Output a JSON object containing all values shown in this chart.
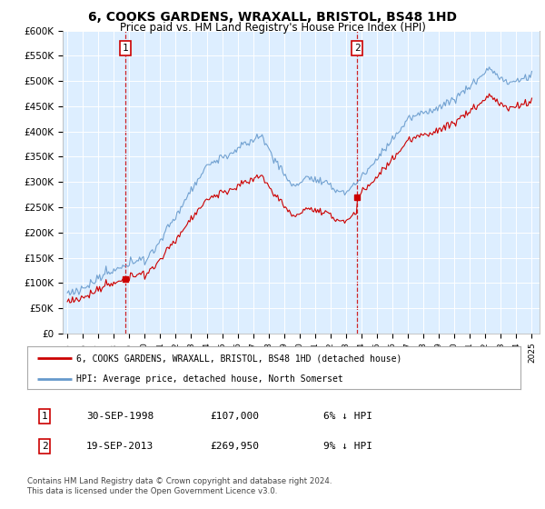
{
  "title": "6, COOKS GARDENS, WRAXALL, BRISTOL, BS48 1HD",
  "subtitle": "Price paid vs. HM Land Registry's House Price Index (HPI)",
  "plot_bg_color": "#ddeeff",
  "ylim": [
    0,
    600000
  ],
  "yticks": [
    0,
    50000,
    100000,
    150000,
    200000,
    250000,
    300000,
    350000,
    400000,
    450000,
    500000,
    550000,
    600000
  ],
  "ytick_labels": [
    "£0",
    "£50K",
    "£100K",
    "£150K",
    "£200K",
    "£250K",
    "£300K",
    "£350K",
    "£400K",
    "£450K",
    "£500K",
    "£550K",
    "£600K"
  ],
  "sale1_year": 1998.75,
  "sale1_price": 107000,
  "sale2_year": 2013.72,
  "sale2_price": 269950,
  "legend_line1": "6, COOKS GARDENS, WRAXALL, BRISTOL, BS48 1HD (detached house)",
  "legend_line2": "HPI: Average price, detached house, North Somerset",
  "footer": "Contains HM Land Registry data © Crown copyright and database right 2024.\nThis data is licensed under the Open Government Licence v3.0.",
  "red_color": "#cc0000",
  "blue_color": "#6699cc",
  "box_color": "#cc0000",
  "table_row1": [
    "1",
    "30-SEP-1998",
    "£107,000",
    "6% ↓ HPI"
  ],
  "table_row2": [
    "2",
    "19-SEP-2013",
    "£269,950",
    "9% ↓ HPI"
  ]
}
